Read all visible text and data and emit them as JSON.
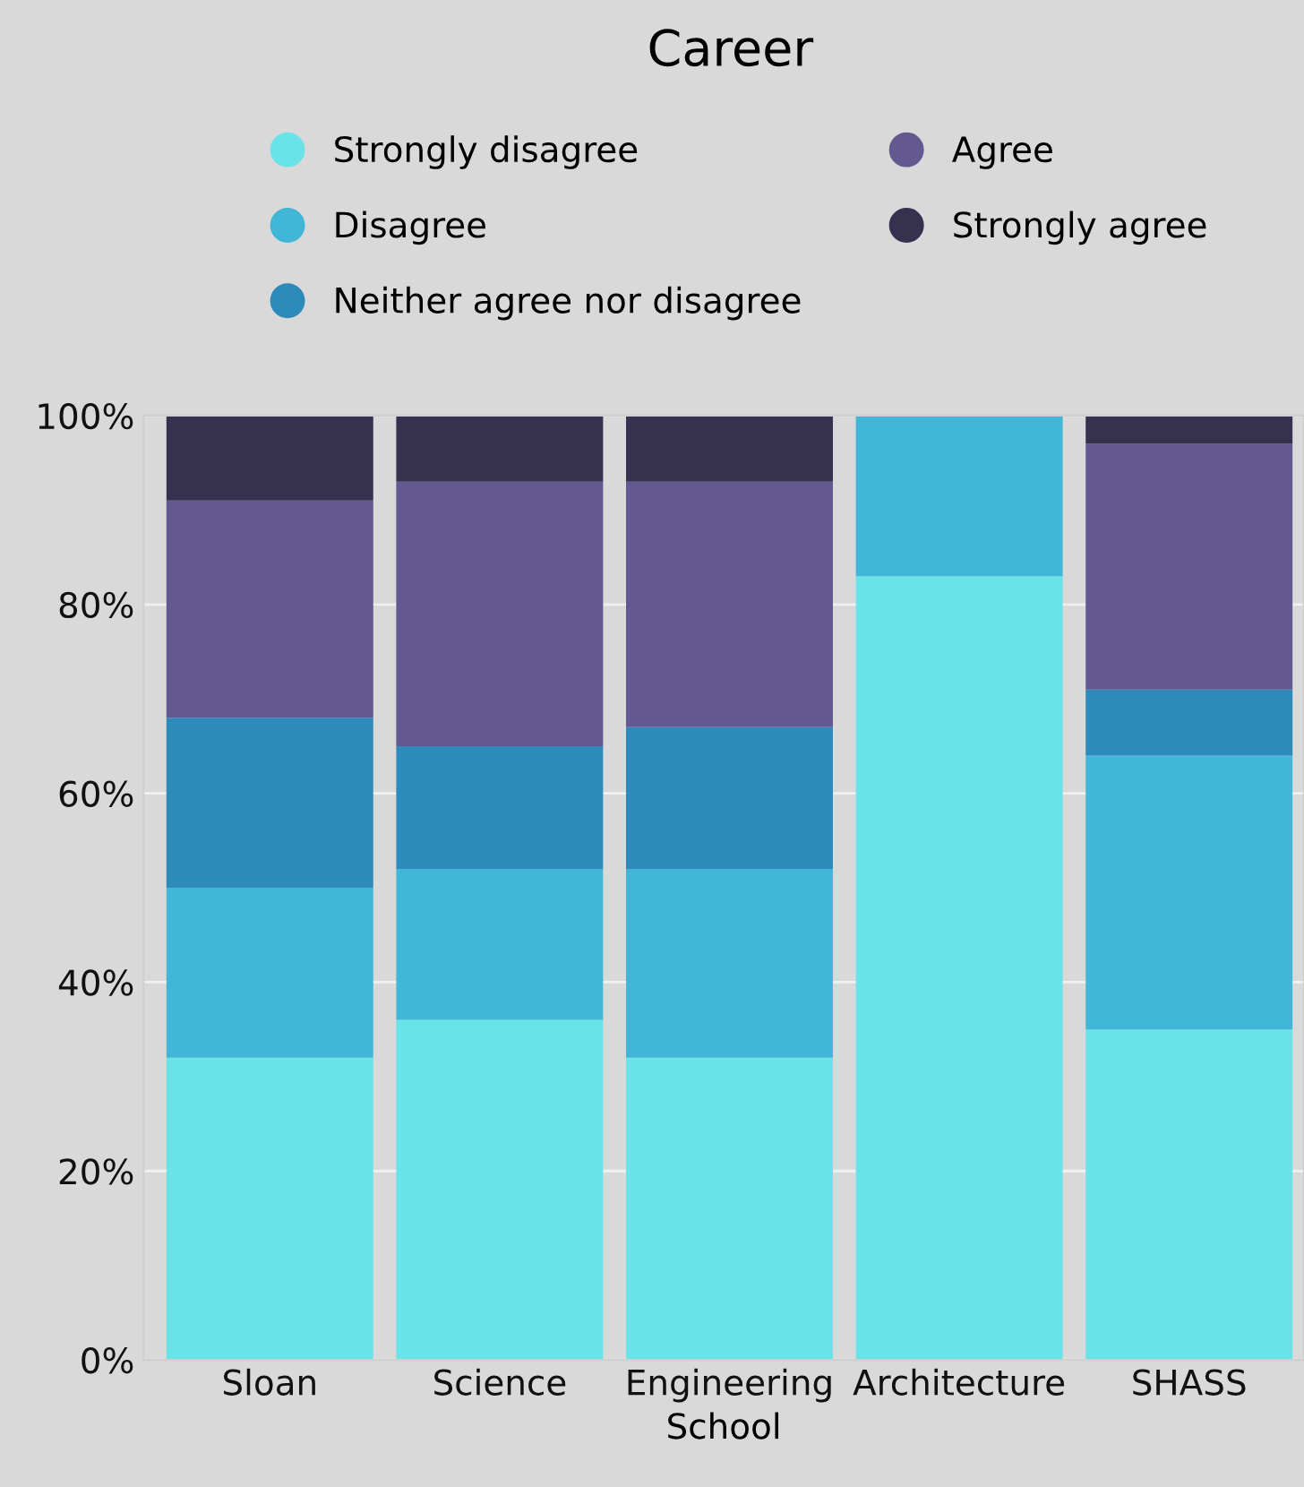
{
  "chart_data": {
    "type": "bar",
    "stacked": true,
    "title": "Career",
    "xlabel": "School",
    "categories": [
      "Sloan",
      "Science",
      "Engineering",
      "Architecture",
      "SHASS"
    ],
    "series": [
      {
        "name": "Strongly disagree",
        "color": "#6ae3e8",
        "values": [
          32,
          36,
          32,
          83,
          35
        ]
      },
      {
        "name": "Disagree",
        "color": "#42b6d6",
        "values": [
          18,
          16,
          20,
          17,
          29
        ]
      },
      {
        "name": "Neither agree nor disagree",
        "color": "#2d8aba",
        "values": [
          18,
          13,
          15,
          0,
          7
        ]
      },
      {
        "name": "Agree",
        "color": "#635890",
        "values": [
          23,
          28,
          26,
          0,
          26
        ]
      },
      {
        "name": "Strongly agree",
        "color": "#373150",
        "values": [
          9,
          7,
          7,
          0,
          3
        ]
      }
    ],
    "ylim": [
      0,
      100
    ],
    "yticks": [
      {
        "value": 0,
        "label": "0%"
      },
      {
        "value": 20,
        "label": "20%"
      },
      {
        "value": 40,
        "label": "40%"
      },
      {
        "value": 60,
        "label": "60%"
      },
      {
        "value": 80,
        "label": "80%"
      },
      {
        "value": 100,
        "label": "100%"
      }
    ],
    "grid": "y",
    "legend": "top",
    "marker": "circle"
  }
}
